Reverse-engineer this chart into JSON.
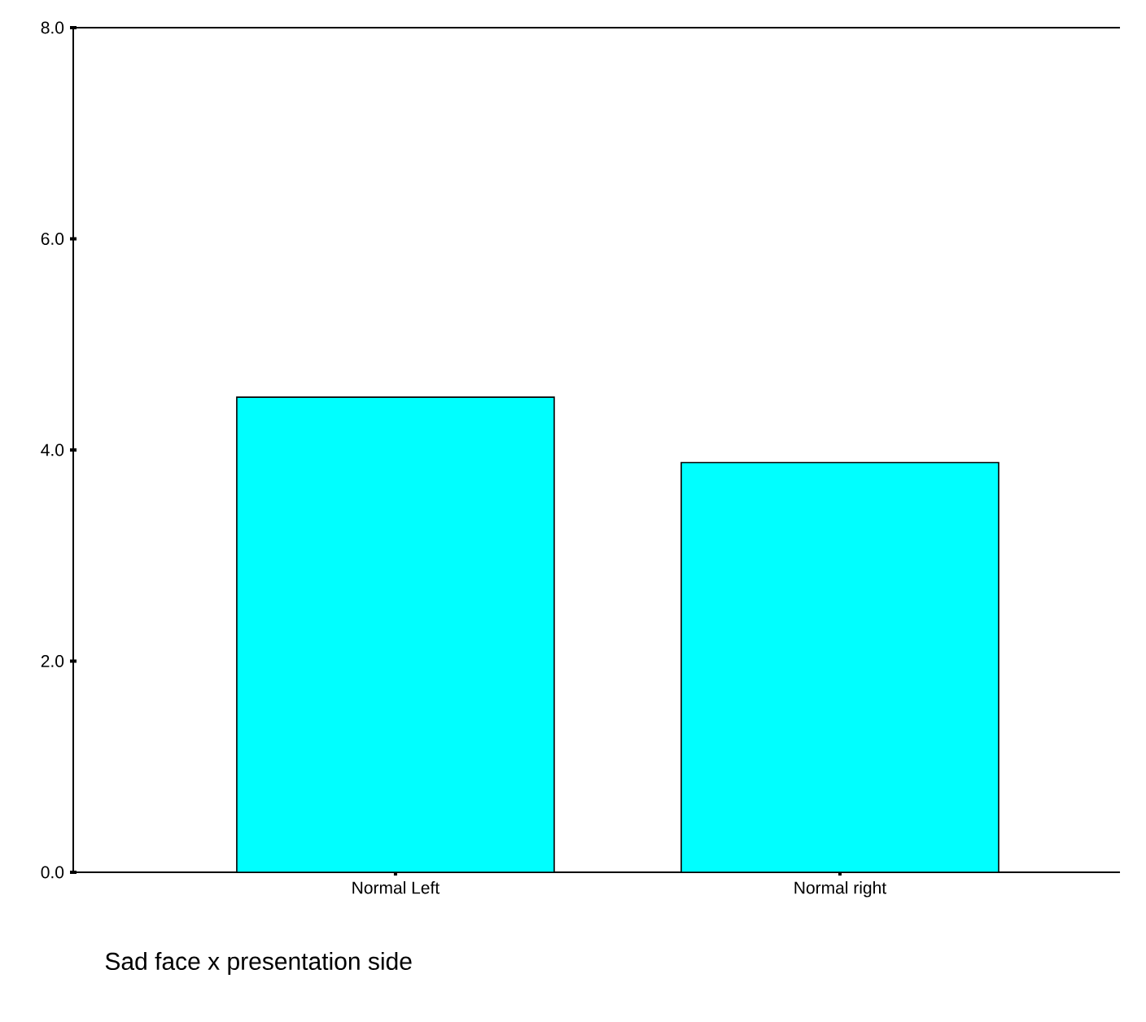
{
  "chart_data": {
    "type": "bar",
    "xlabel": "Sad face x presentation side",
    "categories": [
      "Normal Left",
      "Normal right"
    ],
    "values": [
      4.5,
      3.88
    ],
    "color": "#00ffff",
    "ylim": [
      0,
      8
    ],
    "yticks": [
      {
        "value": 0,
        "label": "0.0"
      },
      {
        "value": 2,
        "label": "2.0"
      },
      {
        "value": 4,
        "label": "4.0"
      },
      {
        "value": 6,
        "label": "6.0"
      },
      {
        "value": 8,
        "label": "8.0"
      }
    ],
    "grid": false
  }
}
